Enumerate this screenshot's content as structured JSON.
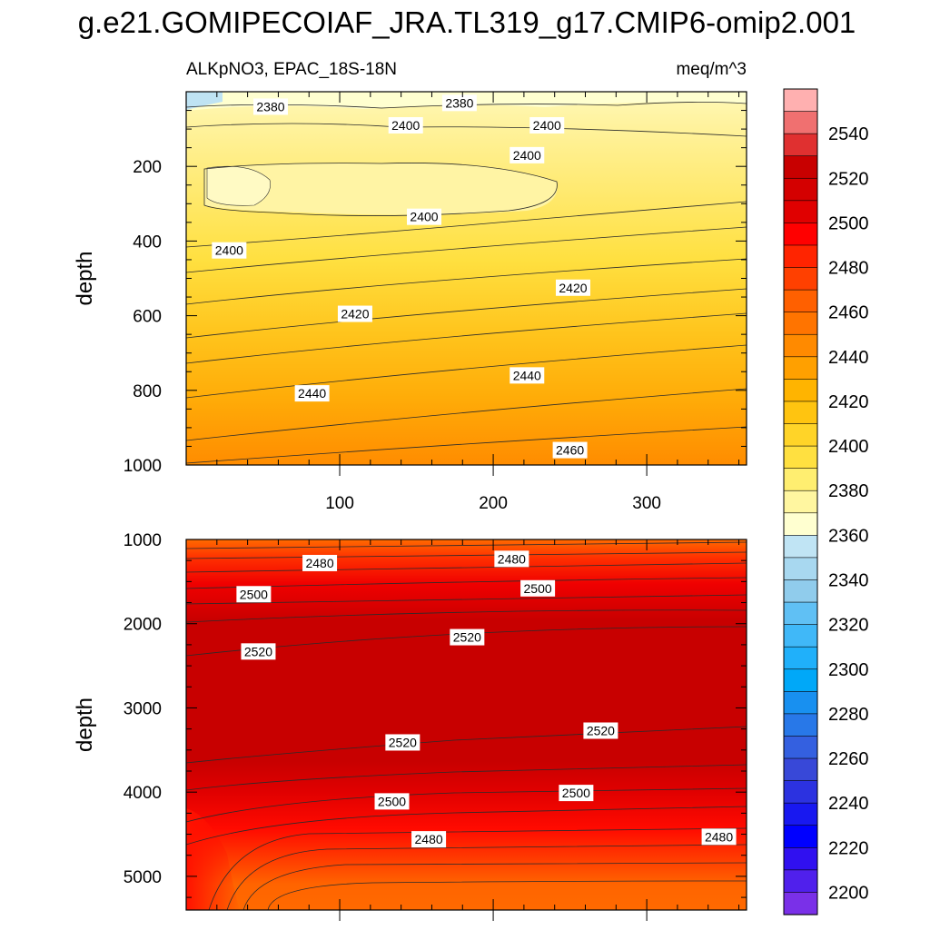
{
  "chart_data": {
    "type": "contour",
    "title": "g.e21.GOMIPECOIAF_JRA.TL319_g17.CMIP6-omip2.001",
    "variable": "ALKpNO3",
    "region": "EPAC_18S-18N",
    "units": "meq/m^3",
    "panels": [
      {
        "name": "upper",
        "ylabel": "depth",
        "xlim": [
          0,
          365
        ],
        "ylim": [
          1000,
          0
        ],
        "x_ticks": [
          "100",
          "200",
          "300"
        ],
        "y_ticks": [
          "200",
          "400",
          "600",
          "800",
          "1000"
        ],
        "contour_labels": [
          {
            "text": "2380",
            "x": 55,
            "y": 40
          },
          {
            "text": "2380",
            "x": 178,
            "y": 30
          },
          {
            "text": "2400",
            "x": 143,
            "y": 90
          },
          {
            "text": "2400",
            "x": 222,
            "y": 170
          },
          {
            "text": "2400",
            "x": 235,
            "y": 90
          },
          {
            "text": "2400",
            "x": 155,
            "y": 335
          },
          {
            "text": "2400",
            "x": 28,
            "y": 425
          },
          {
            "text": "2420",
            "x": 110,
            "y": 595
          },
          {
            "text": "2420",
            "x": 252,
            "y": 525
          },
          {
            "text": "2440",
            "x": 82,
            "y": 808
          },
          {
            "text": "2440",
            "x": 222,
            "y": 760
          },
          {
            "text": "2460",
            "x": 250,
            "y": 960
          }
        ]
      },
      {
        "name": "lower",
        "ylabel": "depth",
        "xlim": [
          0,
          365
        ],
        "ylim": [
          5400,
          1000
        ],
        "x_ticks": [],
        "y_ticks": [
          "1000",
          "2000",
          "3000",
          "4000",
          "5000"
        ],
        "contour_labels": [
          {
            "text": "2480",
            "x": 87,
            "y": 1280
          },
          {
            "text": "2480",
            "x": 212,
            "y": 1230
          },
          {
            "text": "2500",
            "x": 44,
            "y": 1650
          },
          {
            "text": "2500",
            "x": 229,
            "y": 1580
          },
          {
            "text": "2520",
            "x": 47,
            "y": 2330
          },
          {
            "text": "2520",
            "x": 183,
            "y": 2160
          },
          {
            "text": "2520",
            "x": 141,
            "y": 3410
          },
          {
            "text": "2520",
            "x": 270,
            "y": 3270
          },
          {
            "text": "2500",
            "x": 134,
            "y": 4110
          },
          {
            "text": "2500",
            "x": 254,
            "y": 4010
          },
          {
            "text": "2480",
            "x": 158,
            "y": 4560
          },
          {
            "text": "2480",
            "x": 347,
            "y": 4530
          }
        ]
      }
    ],
    "colorbar": {
      "labels": [
        "2540",
        "2520",
        "2500",
        "2480",
        "2460",
        "2440",
        "2420",
        "2400",
        "2380",
        "2360",
        "2340",
        "2320",
        "2300",
        "2280",
        "2260",
        "2240",
        "2220",
        "2200"
      ],
      "colors": [
        "#ffb0b0",
        "#f07070",
        "#e03030",
        "#c80000",
        "#d40000",
        "#e00000",
        "#ff0000",
        "#ff2400",
        "#ff4000",
        "#ff6000",
        "#ff7400",
        "#ff8a00",
        "#ffa000",
        "#ffb400",
        "#ffc410",
        "#ffd428",
        "#ffe040",
        "#ffee70",
        "#fff6a0",
        "#ffffd0",
        "#c0e4f4",
        "#a8d8f0",
        "#90ccec",
        "#60c0f4",
        "#40b8f8",
        "#20b0fa",
        "#00a8f8",
        "#1890f0",
        "#2878e8",
        "#3460e0",
        "#3848d8",
        "#2c32e0",
        "#1818f0",
        "#0000ff",
        "#3010f0",
        "#5020ec",
        "#7a30e8"
      ]
    }
  }
}
